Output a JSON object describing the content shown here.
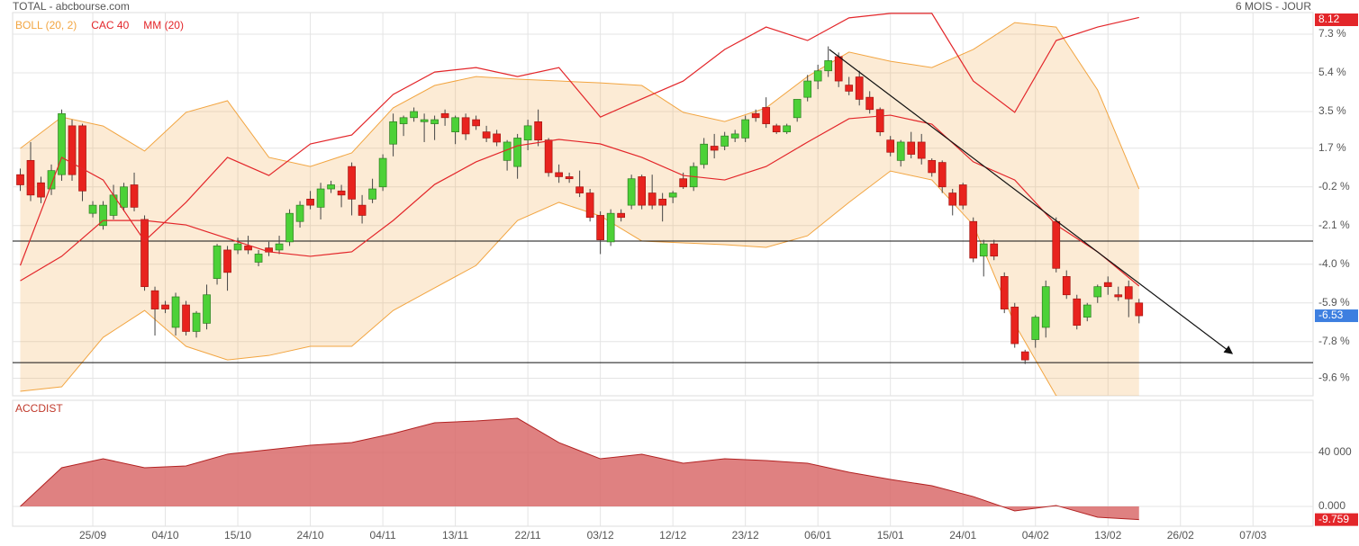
{
  "chart_data": [
    {
      "type": "candlestick",
      "title": "TOTAL - abcbourse.com",
      "subtitle": "6 MOIS - JOUR",
      "up_color": "#4cd137",
      "down_color": "#e8231e",
      "grid": true,
      "xlim": [
        -0.74,
        124.8
      ],
      "xticks": [
        {
          "value": 7,
          "label": "25/09"
        },
        {
          "value": 14,
          "label": "04/10"
        },
        {
          "value": 21,
          "label": "15/10"
        },
        {
          "value": 28,
          "label": "24/10"
        },
        {
          "value": 35,
          "label": "04/11"
        },
        {
          "value": 42,
          "label": "13/11"
        },
        {
          "value": 49,
          "label": "22/11"
        },
        {
          "value": 56,
          "label": "03/12"
        },
        {
          "value": 63,
          "label": "12/12"
        },
        {
          "value": 70,
          "label": "23/12"
        },
        {
          "value": 77,
          "label": "06/01"
        },
        {
          "value": 84,
          "label": "15/01"
        },
        {
          "value": 91,
          "label": "24/01"
        },
        {
          "value": 98,
          "label": "04/02"
        },
        {
          "value": 105,
          "label": "13/02"
        },
        {
          "value": 112,
          "label": "26/02"
        },
        {
          "value": 119,
          "label": "07/03"
        }
      ],
      "ylim": [
        -10.46,
        8.36
      ],
      "yticks": [
        {
          "value": 7.3,
          "label": "7.3 %"
        },
        {
          "value": 5.4,
          "label": "5.4 %"
        },
        {
          "value": 3.5,
          "label": "3.5 %"
        },
        {
          "value": 1.7,
          "label": "1.7 %"
        },
        {
          "value": -0.2,
          "label": "-0.2 %"
        },
        {
          "value": -2.1,
          "label": "-2.1 %"
        },
        {
          "value": -4.0,
          "label": "-4.0 %"
        },
        {
          "value": -5.9,
          "label": "-5.9 %"
        },
        {
          "value": -7.8,
          "label": "-7.8 %"
        },
        {
          "value": -9.6,
          "label": "-9.6 %"
        }
      ],
      "hlines": [
        -2.86,
        -8.83
      ],
      "trendline": {
        "x": [
          78.1,
          117
        ],
        "y": [
          6.55,
          -8.39
        ]
      },
      "ohlc": [
        [
          0.4,
          0.7,
          -0.4,
          -0.1
        ],
        [
          1.1,
          2.0,
          -0.9,
          -0.6
        ],
        [
          0.0,
          0.3,
          -1.0,
          -0.7
        ],
        [
          -0.3,
          0.9,
          -0.6,
          0.6
        ],
        [
          0.4,
          3.6,
          0.1,
          3.4
        ],
        [
          2.8,
          3.1,
          0.1,
          0.4
        ],
        [
          2.8,
          2.9,
          -0.9,
          -0.4
        ],
        [
          -1.5,
          -0.9,
          -1.7,
          -1.1
        ],
        [
          -2.1,
          -0.9,
          -2.3,
          -1.1
        ],
        [
          -1.6,
          -0.1,
          -1.8,
          -0.6
        ],
        [
          -1.2,
          0.0,
          -1.4,
          -0.2
        ],
        [
          -0.1,
          0.5,
          -1.4,
          -1.2
        ],
        [
          -1.8,
          -1.6,
          -5.3,
          -5.1
        ],
        [
          -5.3,
          -5.1,
          -7.5,
          -6.2
        ],
        [
          -6.0,
          -5.8,
          -6.4,
          -6.2
        ],
        [
          -7.1,
          -5.4,
          -7.5,
          -5.6
        ],
        [
          -6.0,
          -5.8,
          -7.5,
          -7.3
        ],
        [
          -7.3,
          -6.3,
          -7.6,
          -6.4
        ],
        [
          -6.9,
          -5.0,
          -7.2,
          -5.5
        ],
        [
          -4.7,
          -3.0,
          -5.0,
          -3.1
        ],
        [
          -3.3,
          -3.1,
          -5.3,
          -4.4
        ],
        [
          -3.3,
          -2.7,
          -3.5,
          -3.0
        ],
        [
          -3.1,
          -2.6,
          -3.5,
          -3.3
        ],
        [
          -3.9,
          -3.3,
          -4.1,
          -3.5
        ],
        [
          -3.2,
          -2.9,
          -3.6,
          -3.4
        ],
        [
          -3.3,
          -2.6,
          -3.5,
          -3.0
        ],
        [
          -2.9,
          -1.3,
          -3.1,
          -1.5
        ],
        [
          -1.9,
          -0.9,
          -2.2,
          -1.1
        ],
        [
          -0.8,
          -0.4,
          -1.3,
          -1.1
        ],
        [
          -1.2,
          0.0,
          -1.8,
          -0.3
        ],
        [
          -0.3,
          0.1,
          -0.5,
          -0.1
        ],
        [
          -0.4,
          -0.1,
          -1.2,
          -0.6
        ],
        [
          0.8,
          1.0,
          -1.6,
          -0.8
        ],
        [
          -1.1,
          -0.6,
          -2.0,
          -1.6
        ],
        [
          -0.8,
          0.2,
          -1.0,
          -0.3
        ],
        [
          -0.2,
          1.4,
          -0.4,
          1.2
        ],
        [
          1.9,
          3.4,
          1.3,
          3.0
        ],
        [
          2.9,
          3.3,
          2.3,
          3.2
        ],
        [
          3.2,
          3.7,
          3.0,
          3.5
        ],
        [
          3.0,
          3.4,
          2.0,
          3.1
        ],
        [
          2.9,
          3.3,
          2.1,
          3.1
        ],
        [
          3.4,
          3.6,
          2.8,
          3.2
        ],
        [
          2.5,
          3.3,
          1.9,
          3.2
        ],
        [
          3.2,
          3.4,
          2.1,
          2.4
        ],
        [
          3.1,
          3.3,
          2.6,
          2.8
        ],
        [
          2.5,
          2.8,
          2.0,
          2.2
        ],
        [
          2.4,
          2.6,
          1.8,
          2.0
        ],
        [
          1.1,
          2.1,
          0.6,
          2.0
        ],
        [
          0.8,
          2.4,
          0.2,
          2.2
        ],
        [
          2.1,
          3.1,
          1.6,
          2.8
        ],
        [
          3.0,
          3.6,
          1.8,
          2.1
        ],
        [
          2.1,
          2.2,
          0.3,
          0.5
        ],
        [
          0.5,
          0.9,
          0.0,
          0.3
        ],
        [
          0.3,
          0.5,
          0.0,
          0.2
        ],
        [
          -0.2,
          0.6,
          -0.7,
          -0.5
        ],
        [
          -0.5,
          -0.3,
          -1.9,
          -1.7
        ],
        [
          -1.6,
          -1.4,
          -3.5,
          -2.8
        ],
        [
          -2.9,
          -1.3,
          -3.1,
          -1.5
        ],
        [
          -1.5,
          -1.3,
          -1.9,
          -1.7
        ],
        [
          -1.1,
          0.4,
          -1.3,
          0.2
        ],
        [
          0.3,
          0.4,
          -1.3,
          -1.1
        ],
        [
          -0.5,
          0.4,
          -1.3,
          -1.1
        ],
        [
          -0.8,
          -0.5,
          -1.9,
          -1.1
        ],
        [
          -0.7,
          -0.4,
          -1.0,
          -0.5
        ],
        [
          0.2,
          0.5,
          -0.3,
          -0.2
        ],
        [
          -0.2,
          1.0,
          -0.4,
          0.8
        ],
        [
          0.9,
          2.2,
          0.7,
          1.9
        ],
        [
          1.8,
          2.4,
          1.2,
          1.6
        ],
        [
          1.8,
          2.5,
          1.6,
          2.3
        ],
        [
          2.2,
          2.6,
          2.0,
          2.4
        ],
        [
          2.2,
          3.3,
          2.0,
          3.1
        ],
        [
          3.4,
          3.6,
          3.0,
          3.2
        ],
        [
          3.7,
          4.2,
          2.7,
          2.9
        ],
        [
          2.8,
          2.9,
          2.4,
          2.5
        ],
        [
          2.5,
          2.9,
          2.4,
          2.8
        ],
        [
          3.2,
          4.1,
          3.0,
          4.1
        ],
        [
          4.2,
          5.3,
          4.0,
          5.0
        ],
        [
          5.0,
          5.8,
          4.6,
          5.5
        ],
        [
          5.5,
          6.7,
          5.2,
          6.0
        ],
        [
          6.2,
          6.4,
          4.7,
          5.0
        ],
        [
          4.8,
          5.2,
          4.3,
          4.5
        ],
        [
          5.2,
          5.5,
          3.8,
          4.1
        ],
        [
          4.2,
          4.5,
          3.4,
          3.6
        ],
        [
          3.6,
          3.7,
          2.3,
          2.5
        ],
        [
          2.1,
          2.3,
          1.3,
          1.5
        ],
        [
          1.1,
          2.1,
          0.8,
          2.0
        ],
        [
          2.0,
          2.5,
          1.2,
          1.4
        ],
        [
          2.0,
          2.4,
          0.9,
          1.2
        ],
        [
          1.1,
          1.2,
          0.3,
          0.5
        ],
        [
          1.0,
          1.1,
          -0.5,
          -0.2
        ],
        [
          -0.5,
          -0.3,
          -1.6,
          -1.1
        ],
        [
          -0.1,
          0.0,
          -1.3,
          -1.1
        ],
        [
          -1.9,
          -1.7,
          -3.9,
          -3.7
        ],
        [
          -3.6,
          -2.8,
          -4.6,
          -3.0
        ],
        [
          -3.0,
          -2.8,
          -3.8,
          -3.6
        ],
        [
          -4.6,
          -4.4,
          -6.4,
          -6.2
        ],
        [
          -6.1,
          -5.9,
          -8.1,
          -7.9
        ],
        [
          -8.3,
          -8.2,
          -8.9,
          -8.7
        ],
        [
          -7.7,
          -6.5,
          -8.1,
          -6.6
        ],
        [
          -7.1,
          -4.8,
          -7.6,
          -5.1
        ],
        [
          -1.9,
          -1.7,
          -4.4,
          -4.2
        ],
        [
          -4.6,
          -4.3,
          -5.7,
          -5.5
        ],
        [
          -5.7,
          -5.5,
          -7.2,
          -7.0
        ],
        [
          -6.6,
          -5.9,
          -6.8,
          -6.0
        ],
        [
          -5.6,
          -5.0,
          -5.9,
          -5.1
        ],
        [
          -4.9,
          -4.6,
          -5.5,
          -5.1
        ],
        [
          -5.5,
          -5.1,
          -5.8,
          -5.6
        ],
        [
          -5.1,
          -4.8,
          -6.6,
          -5.7
        ],
        [
          -5.9,
          -5.7,
          -6.9,
          -6.53
        ]
      ],
      "series": [
        {
          "name": "BOLL (20, 2)",
          "color": "#f2a541",
          "x": [
            0,
            4,
            8,
            12,
            16,
            20,
            24,
            28,
            32,
            36,
            40,
            44,
            48,
            52,
            56,
            60,
            64,
            68,
            72,
            76,
            80,
            84,
            88,
            92,
            96,
            100,
            104,
            108
          ],
          "upper": [
            1.69,
            3.23,
            2.79,
            1.56,
            3.46,
            4.03,
            1.25,
            0.8,
            1.47,
            3.68,
            4.78,
            5.22,
            5.09,
            5.0,
            4.91,
            4.78,
            3.46,
            3.01,
            3.68,
            5.22,
            6.42,
            5.97,
            5.66,
            6.55,
            7.87,
            7.65,
            4.56,
            -0.3
          ],
          "lower": [
            -10.24,
            -10.02,
            -7.59,
            -6.27,
            -8.03,
            -8.7,
            -8.48,
            -8.03,
            -8.03,
            -6.27,
            -5.16,
            -4.06,
            -1.85,
            -0.96,
            -1.63,
            -2.86,
            -2.95,
            -3.04,
            -3.17,
            -2.6,
            -0.96,
            0.58,
            0.14,
            -2.07,
            -6.93,
            -10.46,
            -11.13,
            -10.68
          ]
        },
        {
          "name": "CAC 40",
          "color": "#e3262a",
          "x": [
            0,
            4,
            8,
            12,
            16,
            20,
            24,
            28,
            32,
            36,
            40,
            44,
            48,
            52,
            56,
            60,
            64,
            68,
            72,
            76,
            80,
            84,
            88,
            92,
            96,
            100,
            104,
            108
          ],
          "values": [
            -4.06,
            1.25,
            0.14,
            -2.86,
            -0.96,
            1.25,
            0.36,
            1.91,
            2.35,
            4.34,
            5.44,
            5.66,
            5.22,
            5.66,
            3.23,
            4.12,
            5.0,
            6.55,
            7.65,
            6.99,
            8.1,
            8.32,
            8.32,
            5.0,
            3.46,
            6.99,
            7.65,
            8.12
          ]
        },
        {
          "name": "MM (20)",
          "color": "#e3262a",
          "x": [
            0,
            4,
            8,
            12,
            16,
            20,
            24,
            28,
            32,
            36,
            40,
            44,
            48,
            52,
            56,
            60,
            64,
            68,
            72,
            76,
            80,
            84,
            88,
            92,
            96,
            100,
            104,
            108
          ],
          "values": [
            -4.81,
            -3.61,
            -1.85,
            -1.85,
            -2.07,
            -2.73,
            -3.39,
            -3.61,
            -3.39,
            -1.85,
            -0.08,
            1.03,
            1.82,
            2.13,
            1.91,
            1.25,
            0.36,
            0.14,
            0.8,
            2.0,
            3.15,
            3.32,
            2.88,
            1.03,
            0.14,
            -2.07,
            -3.39,
            -5.07
          ]
        }
      ]
    },
    {
      "type": "area",
      "title": "ACCDIST",
      "color": "#d96b6b",
      "x": [
        0,
        4,
        8,
        12,
        16,
        20,
        24,
        28,
        32,
        36,
        40,
        44,
        48,
        52,
        56,
        60,
        64,
        68,
        72,
        76,
        80,
        84,
        88,
        92,
        96,
        100,
        104,
        108
      ],
      "values": [
        0,
        28700,
        35300,
        28700,
        30000,
        38700,
        42000,
        45300,
        47300,
        54000,
        62000,
        63300,
        65300,
        47300,
        35300,
        38700,
        32000,
        35300,
        34000,
        32000,
        25300,
        20000,
        15300,
        7300,
        -3300,
        700,
        -8000,
        -9759
      ],
      "value_labels": [
        null,
        null,
        null,
        null,
        null,
        null,
        null,
        null,
        null,
        null,
        null,
        null,
        null,
        null,
        null,
        null,
        null,
        null,
        null,
        null,
        null,
        null,
        null,
        null,
        null,
        null,
        null,
        "-9.759"
      ],
      "ylim": [
        -14667,
        78667
      ],
      "yticks": [
        {
          "value": 40000,
          "label": "40 000"
        },
        {
          "value": 0,
          "label": "0.000"
        }
      ]
    }
  ]
}
